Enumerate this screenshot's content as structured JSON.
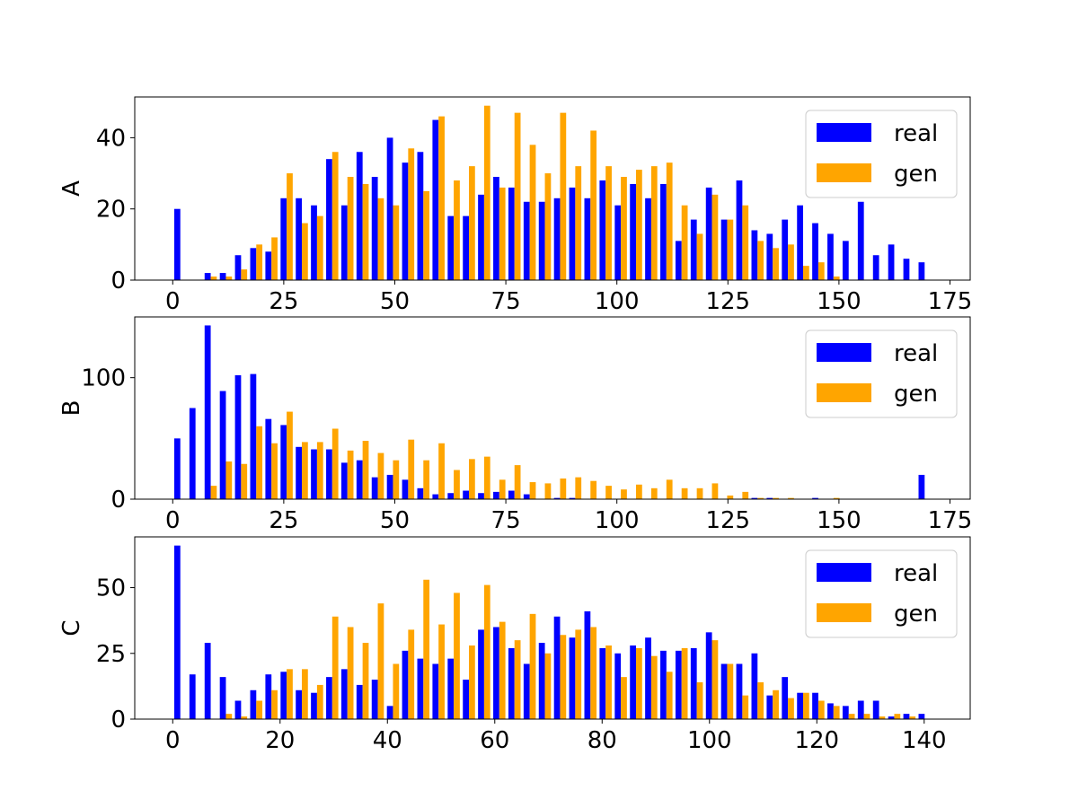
{
  "chart_data": [
    {
      "type": "histogram",
      "ylabel": "A",
      "bins": [
        0,
        3.42,
        6.84,
        10.26,
        13.68,
        17.1,
        20.52,
        23.94,
        27.36,
        30.78,
        34.2,
        37.62,
        41.04,
        44.46,
        47.88,
        51.3,
        54.72,
        58.14,
        61.56,
        64.98,
        68.4,
        71.82,
        75.24,
        78.66,
        82.08,
        85.5,
        88.92,
        92.34,
        95.76,
        99.18,
        102.6,
        106.02,
        109.44,
        112.86,
        116.28,
        119.7,
        123.12,
        126.54,
        129.96,
        133.38,
        136.8,
        140.22,
        143.64,
        147.06,
        150.48,
        153.9,
        157.32,
        160.74,
        164.16,
        167.58,
        171
      ],
      "series": [
        {
          "name": "real",
          "color": "#0000ff",
          "values": [
            20,
            0,
            2,
            2,
            7,
            9,
            8,
            23,
            23,
            21,
            34,
            21,
            36,
            29,
            40,
            33,
            36,
            45,
            18,
            18,
            24,
            29,
            26,
            22,
            22,
            23,
            26,
            23,
            28,
            21,
            27,
            23,
            27,
            11,
            17,
            26,
            17,
            28,
            14,
            13,
            17,
            21,
            16,
            13,
            11,
            22,
            7,
            10,
            6,
            5
          ]
        },
        {
          "name": "gen",
          "color": "#ffa500",
          "values": [
            0,
            0,
            1,
            1,
            3,
            10,
            12,
            30,
            16,
            18,
            36,
            29,
            27,
            23,
            21,
            37,
            25,
            46,
            28,
            32,
            49,
            26,
            47,
            38,
            30,
            47,
            32,
            42,
            32,
            29,
            31,
            32,
            33,
            21,
            13,
            24,
            17,
            21,
            11,
            9,
            10,
            4,
            5,
            1,
            0,
            0,
            0,
            0,
            0,
            0
          ]
        }
      ],
      "xlim": [
        -8.55,
        179.55
      ],
      "ylim": [
        0,
        51.45
      ],
      "xticks": [
        0,
        25,
        50,
        75,
        100,
        125,
        150,
        175
      ],
      "yticks": [
        0,
        20,
        40
      ],
      "legend": "upper right"
    },
    {
      "type": "histogram",
      "ylabel": "B",
      "bins": [
        0,
        3.42,
        6.84,
        10.26,
        13.68,
        17.1,
        20.52,
        23.94,
        27.36,
        30.78,
        34.2,
        37.62,
        41.04,
        44.46,
        47.88,
        51.3,
        54.72,
        58.14,
        61.56,
        64.98,
        68.4,
        71.82,
        75.24,
        78.66,
        82.08,
        85.5,
        88.92,
        92.34,
        95.76,
        99.18,
        102.6,
        106.02,
        109.44,
        112.86,
        116.28,
        119.7,
        123.12,
        126.54,
        129.96,
        133.38,
        136.8,
        140.22,
        143.64,
        147.06,
        150.48,
        153.9,
        157.32,
        160.74,
        164.16,
        167.58,
        171
      ],
      "series": [
        {
          "name": "real",
          "color": "#0000ff",
          "values": [
            50,
            75,
            143,
            89,
            102,
            103,
            66,
            61,
            43,
            41,
            41,
            30,
            32,
            18,
            20,
            16,
            9,
            4,
            5,
            7,
            5,
            6,
            7,
            4,
            0,
            1,
            1,
            0,
            0,
            0,
            0,
            0,
            0,
            0,
            0,
            0,
            0,
            0,
            1,
            1,
            0,
            0,
            1,
            0,
            0,
            0,
            0,
            0,
            0,
            20
          ]
        },
        {
          "name": "gen",
          "color": "#ffa500",
          "values": [
            0,
            0,
            11,
            31,
            29,
            60,
            46,
            72,
            47,
            47,
            58,
            40,
            48,
            38,
            32,
            49,
            32,
            46,
            24,
            33,
            35,
            16,
            28,
            14,
            13,
            17,
            18,
            15,
            11,
            8,
            12,
            9,
            16,
            9,
            9,
            13,
            3,
            6,
            1,
            1,
            1,
            0,
            0,
            1,
            0,
            0,
            0,
            0,
            0,
            0
          ]
        }
      ],
      "xlim": [
        -8.55,
        179.55
      ],
      "ylim": [
        0,
        150
      ],
      "xticks": [
        0,
        25,
        50,
        75,
        100,
        125,
        150,
        175
      ],
      "yticks": [
        0,
        100
      ],
      "legend": "upper right"
    },
    {
      "type": "histogram",
      "ylabel": "C",
      "bins": [
        0,
        2.83,
        5.66,
        8.49,
        11.32,
        14.15,
        16.98,
        19.81,
        22.64,
        25.47,
        28.3,
        31.13,
        33.96,
        36.79,
        39.62,
        42.45,
        45.28,
        48.11,
        50.94,
        53.77,
        56.6,
        59.43,
        62.26,
        65.09,
        67.92,
        70.75,
        73.58,
        76.41,
        79.24,
        82.07,
        84.9,
        87.73,
        90.56,
        93.39,
        96.22,
        99.05,
        101.88,
        104.71,
        107.54,
        110.37,
        113.2,
        116.03,
        118.86,
        121.69,
        124.52,
        127.35,
        130.18,
        133.01,
        135.84,
        138.67,
        141.5
      ],
      "series": [
        {
          "name": "real",
          "color": "#0000ff",
          "values": [
            66,
            17,
            29,
            16,
            7,
            11,
            17,
            18,
            11,
            10,
            16,
            19,
            13,
            15,
            5,
            26,
            23,
            21,
            23,
            15,
            34,
            35,
            27,
            21,
            29,
            39,
            31,
            41,
            27,
            25,
            28,
            31,
            26,
            26,
            27,
            33,
            21,
            21,
            25,
            9,
            16,
            10,
            10,
            6,
            5,
            7,
            7,
            1,
            2,
            2
          ]
        },
        {
          "name": "gen",
          "color": "#ffa500",
          "values": [
            0,
            0,
            0,
            2,
            1,
            7,
            11,
            19,
            19,
            13,
            39,
            35,
            29,
            44,
            21,
            34,
            53,
            36,
            48,
            28,
            51,
            37,
            30,
            40,
            25,
            32,
            34,
            35,
            28,
            16,
            27,
            24,
            18,
            27,
            14,
            30,
            21,
            9,
            14,
            11,
            8,
            10,
            7,
            5,
            2,
            2,
            1,
            2,
            1,
            0
          ]
        }
      ],
      "xlim": [
        -7.075,
        148.575
      ],
      "ylim": [
        0,
        69.3
      ],
      "xticks": [
        0,
        20,
        40,
        60,
        80,
        100,
        120,
        140
      ],
      "yticks": [
        0,
        25,
        50
      ],
      "legend": "upper right"
    }
  ]
}
